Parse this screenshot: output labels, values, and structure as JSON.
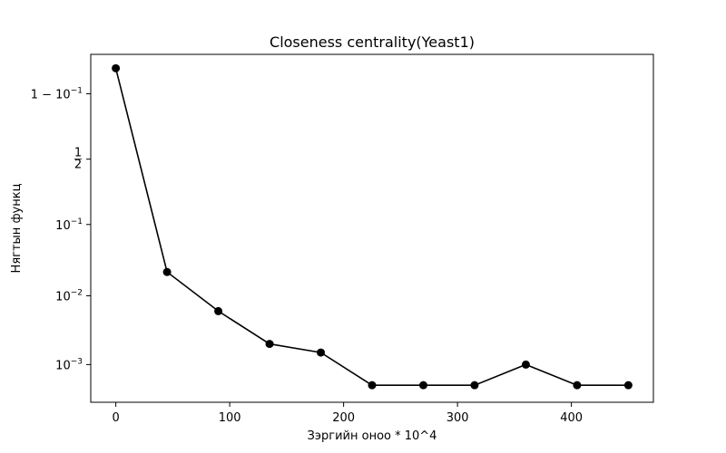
{
  "chart_data": {
    "type": "line",
    "title": "Closeness centrality(Yeast1)",
    "xlabel": "Зэргийн оноо * 10^4",
    "ylabel": "Нягтын функц",
    "yscale": "logit",
    "xlim": [
      -22,
      472
    ],
    "x_ticks": [
      {
        "value": 0,
        "label": "0"
      },
      {
        "value": 100,
        "label": "100"
      },
      {
        "value": 200,
        "label": "200"
      },
      {
        "value": 300,
        "label": "300"
      },
      {
        "value": 400,
        "label": "400"
      }
    ],
    "y_ticks": [
      {
        "value": 0.001,
        "base": "10",
        "exp": "−3"
      },
      {
        "value": 0.01,
        "base": "10",
        "exp": "−2"
      },
      {
        "value": 0.1,
        "base": "10",
        "exp": "−1"
      },
      {
        "value": 0.5,
        "frac_num": "1",
        "frac_den": "2"
      },
      {
        "value": 0.9,
        "base": "1 − 10",
        "exp": "−1"
      }
    ],
    "grid": false,
    "line_color": "#000000",
    "marker": "circle",
    "series": [
      {
        "x": [
          0,
          45,
          90,
          135,
          180,
          225,
          270,
          315,
          360,
          405,
          450
        ],
        "values": [
          0.955,
          0.022,
          0.006,
          0.002,
          0.0015,
          0.0005,
          0.0005,
          0.0005,
          0.001,
          0.0005,
          0.0005
        ]
      }
    ]
  }
}
